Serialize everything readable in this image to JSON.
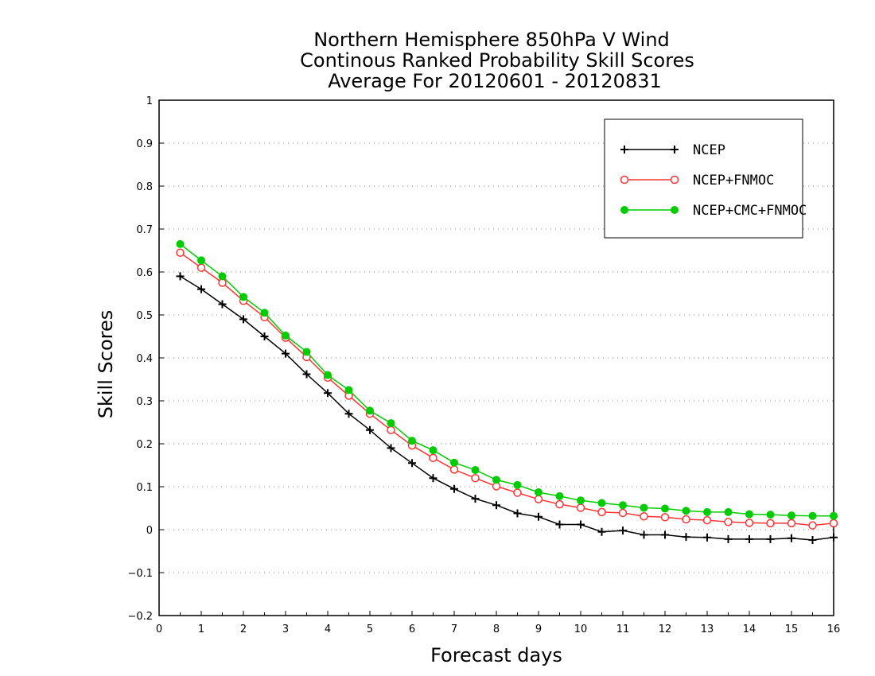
{
  "chart_data": {
    "type": "line",
    "title_lines": [
      "Northern Hemisphere 850hPa V Wind",
      "Continous Ranked Probability Skill Scores",
      "Average For 20120601 - 20120831"
    ],
    "xlabel": "Forecast days",
    "ylabel": "Skill Scores",
    "xlim": [
      0,
      16
    ],
    "ylim": [
      -0.2,
      1
    ],
    "xticks": [
      0,
      1,
      2,
      3,
      4,
      5,
      6,
      7,
      8,
      9,
      10,
      11,
      12,
      13,
      14,
      15,
      16
    ],
    "yticks": [
      -0.2,
      -0.1,
      0,
      0.1,
      0.2,
      0.3,
      0.4,
      0.5,
      0.6,
      0.7,
      0.8,
      0.9,
      1
    ],
    "ytick_labels": [
      "−0.2",
      "−0.1",
      "0",
      "0.1",
      "0.2",
      "0.3",
      "0.4",
      "0.5",
      "0.6",
      "0.7",
      "0.8",
      "0.9",
      "1"
    ],
    "grid": "horizontal dotted",
    "legend_position": "top-right",
    "x": [
      0.5,
      1,
      1.5,
      2,
      2.5,
      3,
      3.5,
      4,
      4.5,
      5,
      5.5,
      6,
      6.5,
      7,
      7.5,
      8,
      8.5,
      9,
      9.5,
      10,
      10.5,
      11,
      11.5,
      12,
      12.5,
      13,
      13.5,
      14,
      14.5,
      15,
      15.5,
      16
    ],
    "series": [
      {
        "name": "NCEP",
        "color": "#000000",
        "marker": "plus",
        "values": [
          0.59,
          0.56,
          0.525,
          0.49,
          0.45,
          0.41,
          0.362,
          0.318,
          0.27,
          0.232,
          0.19,
          0.155,
          0.12,
          0.095,
          0.072,
          0.057,
          0.038,
          0.03,
          0.012,
          0.012,
          -0.005,
          -0.002,
          -0.012,
          -0.012,
          -0.017,
          -0.018,
          -0.022,
          -0.022,
          -0.022,
          -0.02,
          -0.024,
          -0.018
        ]
      },
      {
        "name": "NCEP+FNMOC",
        "color": "#ff3333",
        "marker": "open-circle",
        "values": [
          0.645,
          0.61,
          0.575,
          0.533,
          0.495,
          0.447,
          0.402,
          0.354,
          0.312,
          0.27,
          0.232,
          0.196,
          0.167,
          0.14,
          0.12,
          0.101,
          0.086,
          0.071,
          0.059,
          0.051,
          0.041,
          0.039,
          0.031,
          0.029,
          0.024,
          0.022,
          0.018,
          0.016,
          0.015,
          0.015,
          0.01,
          0.015
        ]
      },
      {
        "name": "NCEP+CMC+FNMOC",
        "color": "#00cc00",
        "marker": "filled-circle",
        "values": [
          0.665,
          0.627,
          0.59,
          0.542,
          0.505,
          0.452,
          0.414,
          0.36,
          0.325,
          0.277,
          0.248,
          0.207,
          0.185,
          0.156,
          0.139,
          0.116,
          0.104,
          0.087,
          0.078,
          0.068,
          0.062,
          0.057,
          0.051,
          0.049,
          0.044,
          0.041,
          0.041,
          0.036,
          0.035,
          0.033,
          0.032,
          0.032
        ]
      }
    ]
  }
}
